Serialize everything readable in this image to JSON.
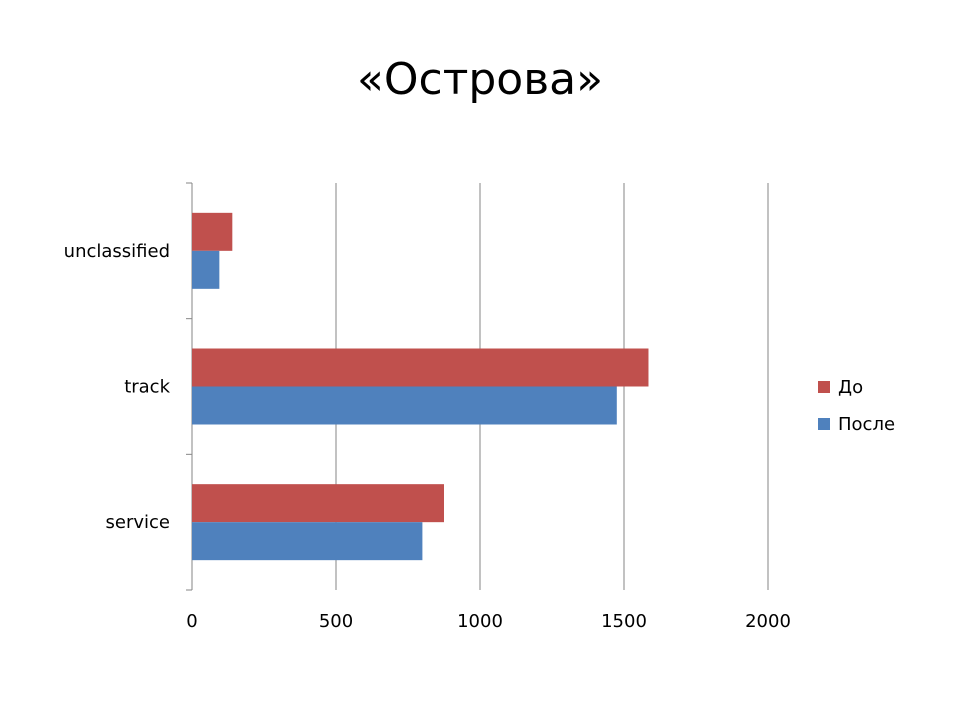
{
  "slide": {
    "title": "«Острова»"
  },
  "chart_data": {
    "type": "bar",
    "orientation": "horizontal",
    "title": "«Острова»",
    "xlabel": "",
    "ylabel": "",
    "categories": [
      "unclassified",
      "track",
      "service"
    ],
    "series": [
      {
        "name": "До",
        "color": "#c0504d",
        "values": [
          140,
          1585,
          875
        ]
      },
      {
        "name": "После",
        "color": "#4f81bd",
        "values": [
          95,
          1475,
          800
        ]
      }
    ],
    "xlim": [
      0,
      2000
    ],
    "xticks": [
      0,
      500,
      1000,
      1500,
      2000
    ],
    "grid": "vertical",
    "legend": "right"
  }
}
